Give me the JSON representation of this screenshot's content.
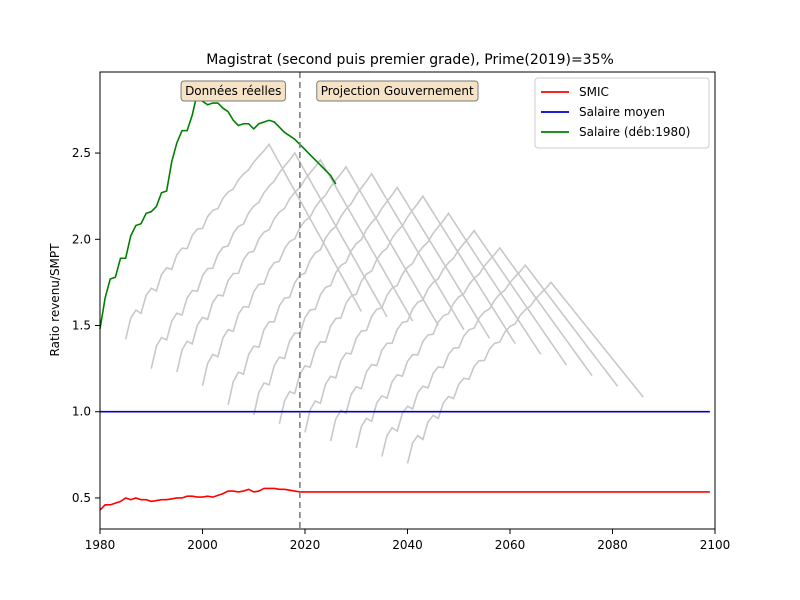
{
  "chart_data": {
    "type": "line",
    "title": "Magistrat (second puis premier grade), Prime(2019)=35%",
    "xlabel": "",
    "ylabel": "Ratio revenu/SMPT",
    "xlim": [
      1980,
      2100
    ],
    "ylim": [
      0.32,
      2.97
    ],
    "x_ticks": [
      1980,
      2000,
      2020,
      2040,
      2060,
      2080,
      2100
    ],
    "y_ticks": [
      0.5,
      1.0,
      1.5,
      2.0,
      2.5
    ],
    "y_tick_labels": [
      "0.5",
      "1.0",
      "1.5",
      "2.0",
      "2.5"
    ],
    "grid": false,
    "legend_position": "top-right",
    "vline": {
      "x": 2019,
      "color": "#808080"
    },
    "annotations": [
      {
        "text": "Données réelles",
        "x": 2006,
        "y": 2.86
      },
      {
        "text": "Projection Gouvernement",
        "x": 2038,
        "y": 2.86
      }
    ],
    "series": [
      {
        "name": "SMIC",
        "color": "#ff0000",
        "x": [
          1980,
          1981,
          1982,
          1983,
          1984,
          1985,
          1986,
          1987,
          1988,
          1989,
          1990,
          1991,
          1992,
          1993,
          1994,
          1995,
          1996,
          1997,
          1998,
          1999,
          2000,
          2001,
          2002,
          2003,
          2004,
          2005,
          2006,
          2007,
          2008,
          2009,
          2010,
          2011,
          2012,
          2013,
          2014,
          2015,
          2016,
          2017,
          2018,
          2019,
          2030,
          2040,
          2050,
          2060,
          2070,
          2080,
          2090,
          2099
        ],
        "values": [
          0.43,
          0.46,
          0.46,
          0.47,
          0.48,
          0.5,
          0.49,
          0.5,
          0.49,
          0.49,
          0.48,
          0.485,
          0.49,
          0.49,
          0.495,
          0.5,
          0.5,
          0.51,
          0.51,
          0.505,
          0.505,
          0.51,
          0.505,
          0.515,
          0.525,
          0.54,
          0.54,
          0.535,
          0.54,
          0.55,
          0.535,
          0.54,
          0.555,
          0.555,
          0.555,
          0.55,
          0.55,
          0.545,
          0.54,
          0.535,
          0.535,
          0.535,
          0.535,
          0.535,
          0.535,
          0.535,
          0.535,
          0.535
        ]
      },
      {
        "name": "Salaire moyen",
        "color": "#0000cc",
        "x": [
          1980,
          2099
        ],
        "values": [
          1.0,
          1.0
        ]
      },
      {
        "name": "Salaire (déb:1980)",
        "color": "#008000",
        "x": [
          1980,
          1981,
          1982,
          1983,
          1984,
          1985,
          1986,
          1987,
          1988,
          1989,
          1990,
          1991,
          1992,
          1993,
          1994,
          1995,
          1996,
          1997,
          1998,
          1999,
          2000,
          2001,
          2002,
          2003,
          2004,
          2005,
          2006,
          2007,
          2008,
          2009,
          2010,
          2011,
          2012,
          2013,
          2014,
          2015,
          2016,
          2017,
          2018,
          2019,
          2020,
          2021,
          2022,
          2023,
          2024,
          2025,
          2026
        ],
        "values": [
          1.48,
          1.66,
          1.77,
          1.78,
          1.89,
          1.89,
          2.02,
          2.08,
          2.09,
          2.15,
          2.16,
          2.19,
          2.27,
          2.28,
          2.45,
          2.56,
          2.63,
          2.63,
          2.72,
          2.85,
          2.8,
          2.78,
          2.79,
          2.79,
          2.76,
          2.74,
          2.69,
          2.66,
          2.67,
          2.67,
          2.64,
          2.67,
          2.68,
          2.69,
          2.68,
          2.65,
          2.62,
          2.6,
          2.58,
          2.55,
          2.52,
          2.49,
          2.46,
          2.43,
          2.4,
          2.37,
          2.32
        ]
      }
    ],
    "background_series": {
      "color": "#c8c8c8",
      "start_years": [
        1985,
        1990,
        1995,
        2000,
        2005,
        2010,
        2015,
        2020,
        2025,
        2030,
        2035,
        2040
      ],
      "start_values": [
        1.46,
        1.29,
        1.27,
        1.19,
        1.08,
        1.02,
        0.97,
        0.92,
        0.87,
        0.83,
        0.78,
        0.74
      ],
      "end_years": [
        2031,
        2036,
        2041,
        2046,
        2051,
        2056,
        2061,
        2066,
        2071,
        2076,
        2081,
        2086
      ],
      "peak_values": [
        2.55,
        2.5,
        2.46,
        2.42,
        2.38,
        2.3,
        2.25,
        2.15,
        2.05,
        1.95,
        1.85,
        1.75
      ]
    }
  }
}
